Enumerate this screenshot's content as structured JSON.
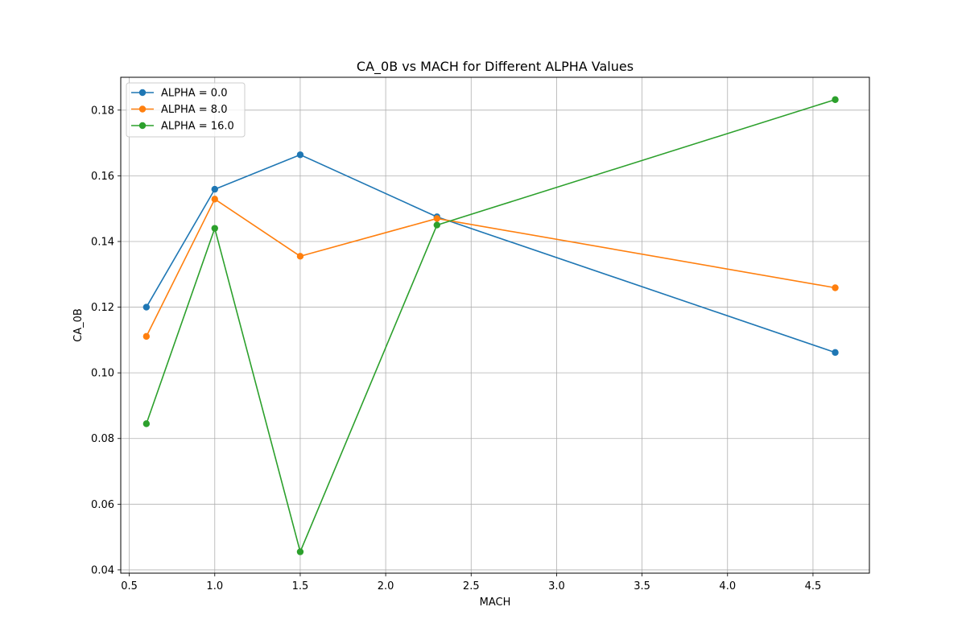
{
  "chart_data": {
    "type": "line",
    "title": "CA_0B vs MACH for Different ALPHA Values",
    "xlabel": "MACH",
    "ylabel": "CA_0B",
    "xlim": [
      0.45,
      4.83
    ],
    "ylim": [
      0.039,
      0.19
    ],
    "xticks": [
      "0.5",
      "1.0",
      "1.5",
      "2.0",
      "2.5",
      "3.0",
      "3.5",
      "4.0",
      "4.5"
    ],
    "yticks": [
      "0.04",
      "0.06",
      "0.08",
      "0.10",
      "0.12",
      "0.14",
      "0.16",
      "0.18"
    ],
    "grid": true,
    "legend_position": "upper-left",
    "x": [
      0.6,
      1.0,
      1.5,
      2.3,
      4.63
    ],
    "series": [
      {
        "name": "ALPHA = 0.0",
        "color": "#1f77b4",
        "values": [
          0.12,
          0.1559,
          0.1664,
          0.1475,
          0.1062
        ]
      },
      {
        "name": "ALPHA = 8.0",
        "color": "#ff7f0e",
        "values": [
          0.1111,
          0.1529,
          0.1355,
          0.147,
          0.1259
        ]
      },
      {
        "name": "ALPHA = 16.0",
        "color": "#2ca02c",
        "values": [
          0.0845,
          0.144,
          0.0455,
          0.145,
          0.1832
        ]
      }
    ]
  }
}
